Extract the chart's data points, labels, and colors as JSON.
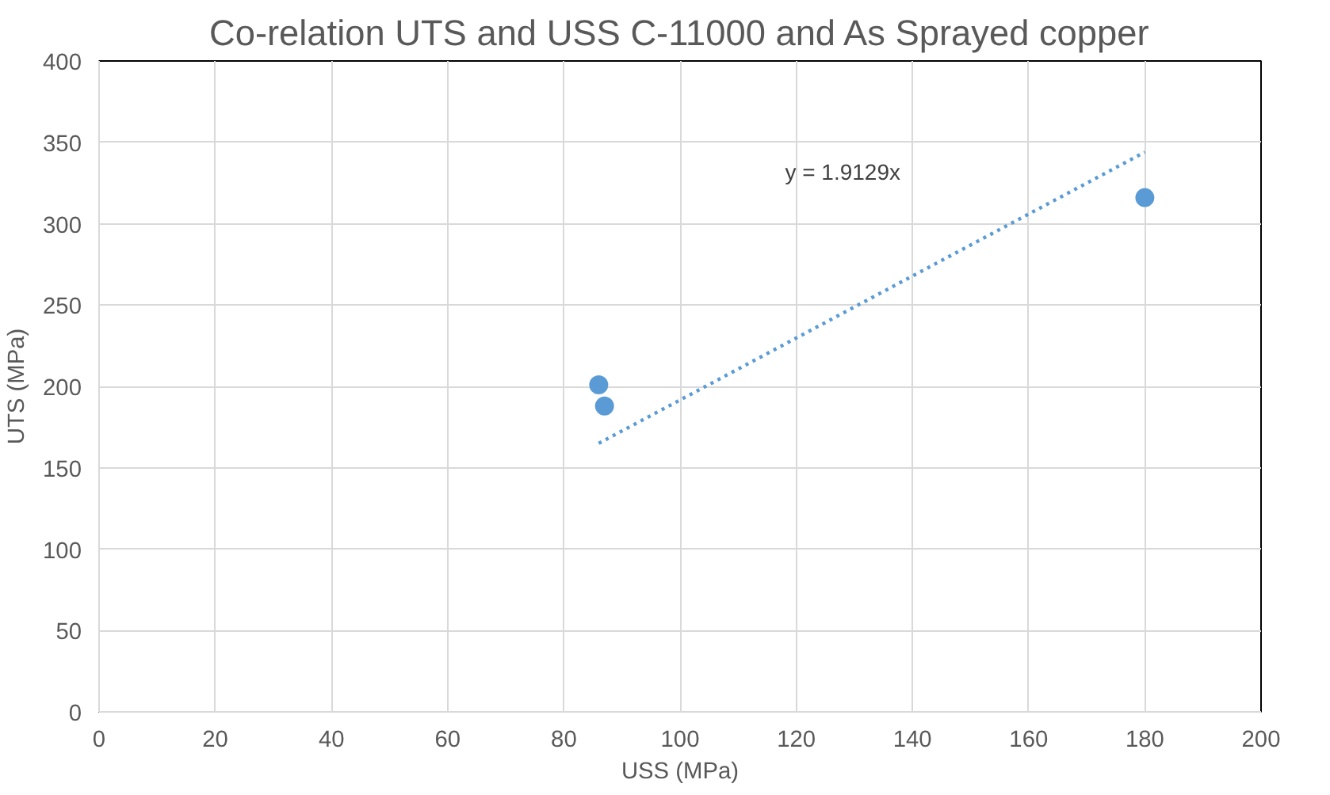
{
  "chart_data": {
    "type": "scatter",
    "title": "Co-relation UTS and USS C-11000 and As Sprayed copper",
    "xlabel": "USS (MPa)",
    "ylabel": "UTS (MPa)",
    "xlim": [
      0,
      200
    ],
    "xticks": [
      0,
      20,
      40,
      60,
      80,
      100,
      120,
      140,
      160,
      180,
      200
    ],
    "ylim": [
      0,
      400
    ],
    "yticks": [
      0,
      50,
      100,
      150,
      200,
      250,
      300,
      350,
      400
    ],
    "grid": true,
    "marker": "circle",
    "series": [
      {
        "color": "#5b9bd5",
        "x": [
          86,
          87,
          180
        ],
        "values": [
          201,
          188,
          316
        ]
      },
      {
        "type": "line",
        "color": "#5b9bd5",
        "line_style": "dotted",
        "marker": "none",
        "x": [
          86,
          180
        ],
        "values": [
          165,
          344
        ]
      }
    ],
    "annotations": [
      "y = 1.9129x"
    ]
  }
}
